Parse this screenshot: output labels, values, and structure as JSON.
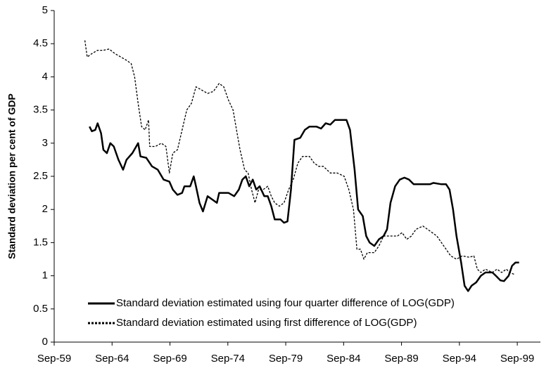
{
  "chart_data": {
    "type": "line",
    "y_label": "Standard deviation per cent of GDP",
    "xlim": [
      1959.75,
      2001.75
    ],
    "xticks": [
      {
        "value": 1959.75,
        "label": "Sep-59"
      },
      {
        "value": 1964.75,
        "label": "Sep-64"
      },
      {
        "value": 1969.75,
        "label": "Sep-69"
      },
      {
        "value": 1974.75,
        "label": "Sep-74"
      },
      {
        "value": 1979.75,
        "label": "Sep-79"
      },
      {
        "value": 1984.75,
        "label": "Sep-84"
      },
      {
        "value": 1989.75,
        "label": "Sep-89"
      },
      {
        "value": 1994.75,
        "label": "Sep-94"
      },
      {
        "value": 1999.75,
        "label": "Sep-99"
      }
    ],
    "ylim": [
      0,
      5
    ],
    "yticks": [
      0,
      0.5,
      1,
      1.5,
      2,
      2.5,
      3,
      3.5,
      4,
      4.5,
      5
    ],
    "grid": false,
    "legend": "lower left",
    "series": [
      {
        "name": "Standard deviation estimated using four quarter difference of LOG(GDP)",
        "color": "#000000",
        "dash": "solid",
        "x": [
          1962.8,
          1963.0,
          1963.3,
          1963.5,
          1963.8,
          1964.0,
          1964.3,
          1964.6,
          1964.9,
          1965.3,
          1965.7,
          1966.0,
          1966.5,
          1967.0,
          1967.2,
          1967.7,
          1968.2,
          1968.7,
          1969.2,
          1969.7,
          1970.0,
          1970.4,
          1970.8,
          1971.0,
          1971.5,
          1971.8,
          1972.0,
          1972.3,
          1972.6,
          1973.0,
          1973.4,
          1973.8,
          1974.0,
          1974.8,
          1975.3,
          1975.7,
          1976.0,
          1976.3,
          1976.6,
          1976.9,
          1977.2,
          1977.5,
          1977.9,
          1978.2,
          1978.5,
          1978.8,
          1979.3,
          1979.6,
          1979.9,
          1980.2,
          1980.5,
          1981.0,
          1981.4,
          1981.8,
          1982.4,
          1982.8,
          1983.2,
          1983.6,
          1984.0,
          1985.0,
          1985.3,
          1985.7,
          1986.0,
          1986.4,
          1986.7,
          1987.0,
          1987.4,
          1987.8,
          1988.2,
          1988.5,
          1988.8,
          1989.2,
          1989.6,
          1990.0,
          1990.4,
          1990.8,
          1991.5,
          1992.2,
          1992.5,
          1993.2,
          1993.6,
          1993.9,
          1994.2,
          1994.5,
          1994.9,
          1995.2,
          1995.5,
          1995.8,
          1996.2,
          1996.6,
          1997.0,
          1997.6,
          1997.9,
          1998.3,
          1998.6,
          1999.0,
          1999.3,
          1999.6,
          1999.9
        ],
        "values": [
          3.25,
          3.18,
          3.2,
          3.3,
          3.15,
          2.9,
          2.85,
          3.0,
          2.95,
          2.75,
          2.6,
          2.75,
          2.85,
          3.0,
          2.8,
          2.78,
          2.65,
          2.6,
          2.45,
          2.42,
          2.3,
          2.22,
          2.25,
          2.35,
          2.35,
          2.5,
          2.35,
          2.1,
          1.97,
          2.2,
          2.15,
          2.1,
          2.25,
          2.25,
          2.2,
          2.3,
          2.45,
          2.5,
          2.35,
          2.45,
          2.3,
          2.35,
          2.2,
          2.2,
          2.05,
          1.85,
          1.85,
          1.8,
          1.82,
          2.3,
          3.05,
          3.08,
          3.2,
          3.25,
          3.25,
          3.22,
          3.3,
          3.28,
          3.35,
          3.35,
          3.2,
          2.6,
          2.0,
          1.9,
          1.6,
          1.5,
          1.45,
          1.55,
          1.6,
          1.7,
          2.1,
          2.35,
          2.45,
          2.48,
          2.45,
          2.38,
          2.38,
          2.38,
          2.4,
          2.38,
          2.38,
          2.3,
          2.0,
          1.6,
          1.2,
          0.85,
          0.77,
          0.85,
          0.9,
          1.0,
          1.05,
          1.05,
          1.0,
          0.93,
          0.92,
          1.0,
          1.15,
          1.2,
          1.2
        ]
      },
      {
        "name": "Standard deviation estimated using first difference of LOG(GDP)",
        "color": "#000000",
        "dash": "dotted",
        "x": [
          1962.4,
          1962.6,
          1963.0,
          1963.5,
          1964.0,
          1964.5,
          1965.0,
          1965.5,
          1966.0,
          1966.4,
          1966.7,
          1967.0,
          1967.3,
          1967.6,
          1967.9,
          1968.0,
          1968.5,
          1969.0,
          1969.4,
          1969.7,
          1970.0,
          1970.4,
          1970.8,
          1971.2,
          1971.6,
          1972.0,
          1972.5,
          1973.0,
          1973.5,
          1974.0,
          1974.4,
          1974.8,
          1975.2,
          1975.5,
          1975.8,
          1976.2,
          1976.5,
          1976.8,
          1977.1,
          1977.4,
          1977.8,
          1978.2,
          1978.5,
          1978.8,
          1979.2,
          1979.6,
          1980.0,
          1980.4,
          1980.8,
          1981.2,
          1981.8,
          1982.2,
          1982.6,
          1983.0,
          1983.6,
          1984.2,
          1984.8,
          1985.2,
          1985.6,
          1985.9,
          1986.2,
          1986.5,
          1986.8,
          1987.4,
          1987.8,
          1988.2,
          1988.8,
          1989.4,
          1989.8,
          1990.2,
          1990.6,
          1991.0,
          1991.6,
          1992.0,
          1992.4,
          1992.8,
          1993.2,
          1993.6,
          1994.0,
          1994.5,
          1995.0,
          1995.6,
          1996.0,
          1996.3,
          1996.6,
          1997.0,
          1997.6,
          1998.0,
          1998.4,
          1998.8,
          1999.1,
          1999.5
        ],
        "values": [
          4.55,
          4.3,
          4.35,
          4.4,
          4.4,
          4.42,
          4.35,
          4.3,
          4.25,
          4.2,
          4.0,
          3.6,
          3.25,
          3.2,
          3.35,
          2.95,
          2.95,
          3.0,
          2.95,
          2.55,
          2.85,
          2.9,
          3.2,
          3.5,
          3.6,
          3.85,
          3.8,
          3.75,
          3.78,
          3.9,
          3.85,
          3.65,
          3.5,
          3.2,
          2.9,
          2.6,
          2.55,
          2.3,
          2.1,
          2.3,
          2.3,
          2.35,
          2.2,
          2.1,
          2.05,
          2.1,
          2.3,
          2.45,
          2.7,
          2.8,
          2.8,
          2.7,
          2.65,
          2.65,
          2.55,
          2.55,
          2.5,
          2.3,
          2.0,
          1.4,
          1.4,
          1.25,
          1.35,
          1.35,
          1.45,
          1.6,
          1.6,
          1.6,
          1.65,
          1.55,
          1.6,
          1.7,
          1.75,
          1.7,
          1.65,
          1.6,
          1.5,
          1.4,
          1.3,
          1.25,
          1.3,
          1.28,
          1.3,
          1.1,
          1.05,
          1.1,
          1.05,
          1.1,
          1.05,
          1.1,
          1.05,
          1.02
        ]
      }
    ]
  }
}
